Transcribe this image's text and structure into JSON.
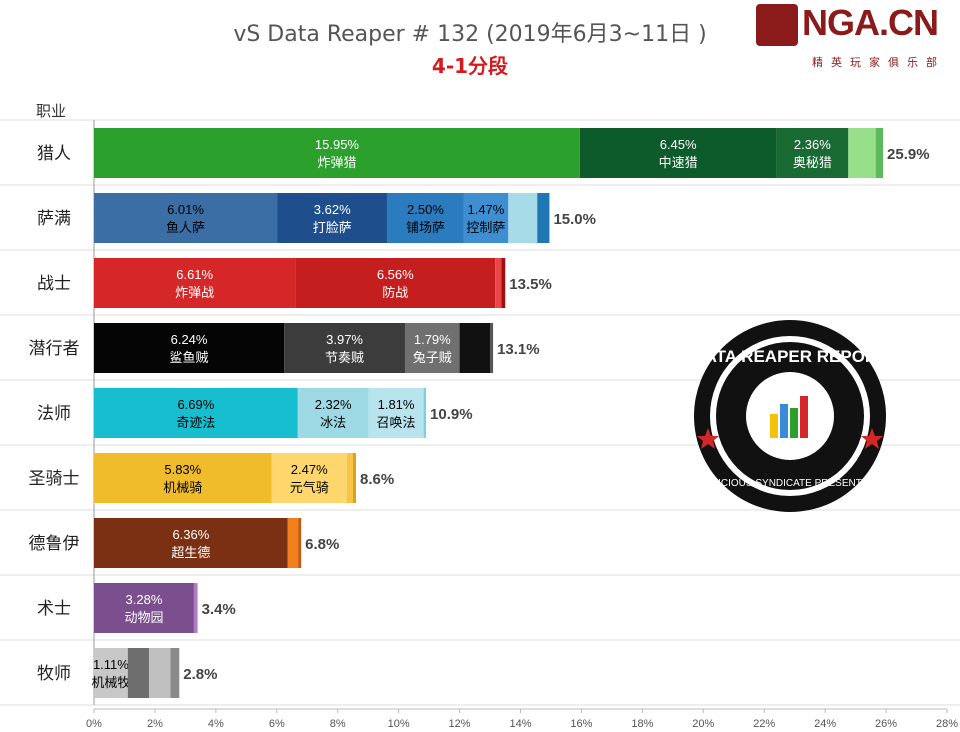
{
  "header": {
    "title": "vS Data Reaper # 132 (2019年6月3~11日 )",
    "subtitle": "4-1分段"
  },
  "logo": {
    "brand": "NGA.CN",
    "tagline": "精英玩家俱乐部"
  },
  "badge": {
    "title": "DATA REAPER REPORT",
    "tagline": "VICIOUS SYNDICATE PRESENTS"
  },
  "chart_data": {
    "type": "bar",
    "orientation": "horizontal",
    "stacked": true,
    "y_axis_label": "职业",
    "xlim": [
      0,
      28
    ],
    "x_ticks": [
      "0%",
      "2%",
      "4%",
      "6%",
      "8%",
      "10%",
      "12%",
      "14%",
      "16%",
      "18%",
      "20%",
      "22%",
      "24%",
      "26%",
      "28%"
    ],
    "grid": false,
    "categories": [
      {
        "label": "猎人",
        "total_label": "25.9%",
        "segments": [
          {
            "value": 15.95,
            "pct_label": "15.95%",
            "name": "炸弹猎",
            "color": "#2ca02c",
            "text_color": "#ffffff"
          },
          {
            "value": 6.45,
            "pct_label": "6.45%",
            "name": "中速猎",
            "color": "#0d5a2a",
            "text_color": "#ffffff"
          },
          {
            "value": 2.36,
            "pct_label": "2.36%",
            "name": "奥秘猎",
            "color": "#1a6b33",
            "text_color": "#ffffff"
          },
          {
            "value": 0.9,
            "color": "#98df8a"
          },
          {
            "value": 0.24,
            "color": "#5cb85c"
          }
        ]
      },
      {
        "label": "萨满",
        "total_label": "15.0%",
        "segments": [
          {
            "value": 6.01,
            "pct_label": "6.01%",
            "name": "鱼人萨",
            "color": "#3a6ea5",
            "text_color": "#000000"
          },
          {
            "value": 3.62,
            "pct_label": "3.62%",
            "name": "打脸萨",
            "color": "#1f4e8c",
            "text_color": "#ffffff"
          },
          {
            "value": 2.5,
            "pct_label": "2.50%",
            "name": "铺场萨",
            "color": "#2b7bbf",
            "text_color": "#000000"
          },
          {
            "value": 1.47,
            "pct_label": "1.47%",
            "name": "控制萨",
            "color": "#3d8fd1",
            "text_color": "#000000"
          },
          {
            "value": 0.95,
            "color": "#a8dbe8"
          },
          {
            "value": 0.4,
            "color": "#1f77b4"
          }
        ]
      },
      {
        "label": "战士",
        "total_label": "13.5%",
        "segments": [
          {
            "value": 6.61,
            "pct_label": "6.61%",
            "name": "炸弹战",
            "color": "#d62728",
            "text_color": "#ffffff"
          },
          {
            "value": 6.56,
            "pct_label": "6.56%",
            "name": "防战",
            "color": "#c41e1e",
            "text_color": "#ffffff"
          },
          {
            "value": 0.2,
            "color": "#e8474a"
          },
          {
            "value": 0.13,
            "color": "#a01010"
          }
        ]
      },
      {
        "label": "潜行者",
        "total_label": "13.1%",
        "segments": [
          {
            "value": 6.24,
            "pct_label": "6.24%",
            "name": "鲨鱼贼",
            "color": "#050505",
            "text_color": "#ffffff"
          },
          {
            "value": 3.97,
            "pct_label": "3.97%",
            "name": "节奏贼",
            "color": "#3c3c3c",
            "text_color": "#ffffff"
          },
          {
            "value": 1.79,
            "pct_label": "1.79%",
            "name": "兔子贼",
            "color": "#707070",
            "text_color": "#ffffff"
          },
          {
            "value": 1.0,
            "color": "#111111"
          },
          {
            "value": 0.1,
            "color": "#555555"
          }
        ]
      },
      {
        "label": "法师",
        "total_label": "10.9%",
        "segments": [
          {
            "value": 6.69,
            "pct_label": "6.69%",
            "name": "奇迹法",
            "color": "#17becf",
            "text_color": "#000000"
          },
          {
            "value": 2.32,
            "pct_label": "2.32%",
            "name": "冰法",
            "color": "#9edae5",
            "text_color": "#000000"
          },
          {
            "value": 1.81,
            "pct_label": "1.81%",
            "name": "召唤法",
            "color": "#b8e4ee",
            "text_color": "#000000"
          },
          {
            "value": 0.08,
            "color": "#7fcfdc"
          }
        ]
      },
      {
        "label": "圣骑士",
        "total_label": "8.6%",
        "segments": [
          {
            "value": 5.83,
            "pct_label": "5.83%",
            "name": "机械骑",
            "color": "#f0bc2c",
            "text_color": "#000000"
          },
          {
            "value": 2.47,
            "pct_label": "2.47%",
            "name": "元气骑",
            "color": "#fdd76b",
            "text_color": "#000000"
          },
          {
            "value": 0.2,
            "color": "#f6c545"
          },
          {
            "value": 0.1,
            "color": "#d9a21b"
          }
        ]
      },
      {
        "label": "德鲁伊",
        "total_label": "6.8%",
        "segments": [
          {
            "value": 6.36,
            "pct_label": "6.36%",
            "name": "超生德",
            "color": "#7b3014",
            "text_color": "#ffffff"
          },
          {
            "value": 0.34,
            "color": "#f07f1c"
          },
          {
            "value": 0.1,
            "color": "#c55a11"
          }
        ]
      },
      {
        "label": "术士",
        "total_label": "3.4%",
        "segments": [
          {
            "value": 3.28,
            "pct_label": "3.28%",
            "name": "动物园",
            "color": "#7b4f8e",
            "text_color": "#ffffff"
          },
          {
            "value": 0.12,
            "color": "#b07cc6"
          }
        ]
      },
      {
        "label": "牧师",
        "total_label": "2.8%",
        "segments": [
          {
            "value": 1.11,
            "pct_label": "1.11%",
            "name": "机械牧",
            "color": "#c8c8c8",
            "text_color": "#000000"
          },
          {
            "value": 0.7,
            "color": "#6e6e6e"
          },
          {
            "value": 0.7,
            "color": "#c0c0c0"
          },
          {
            "value": 0.29,
            "color": "#8a8a8a"
          }
        ]
      }
    ]
  }
}
